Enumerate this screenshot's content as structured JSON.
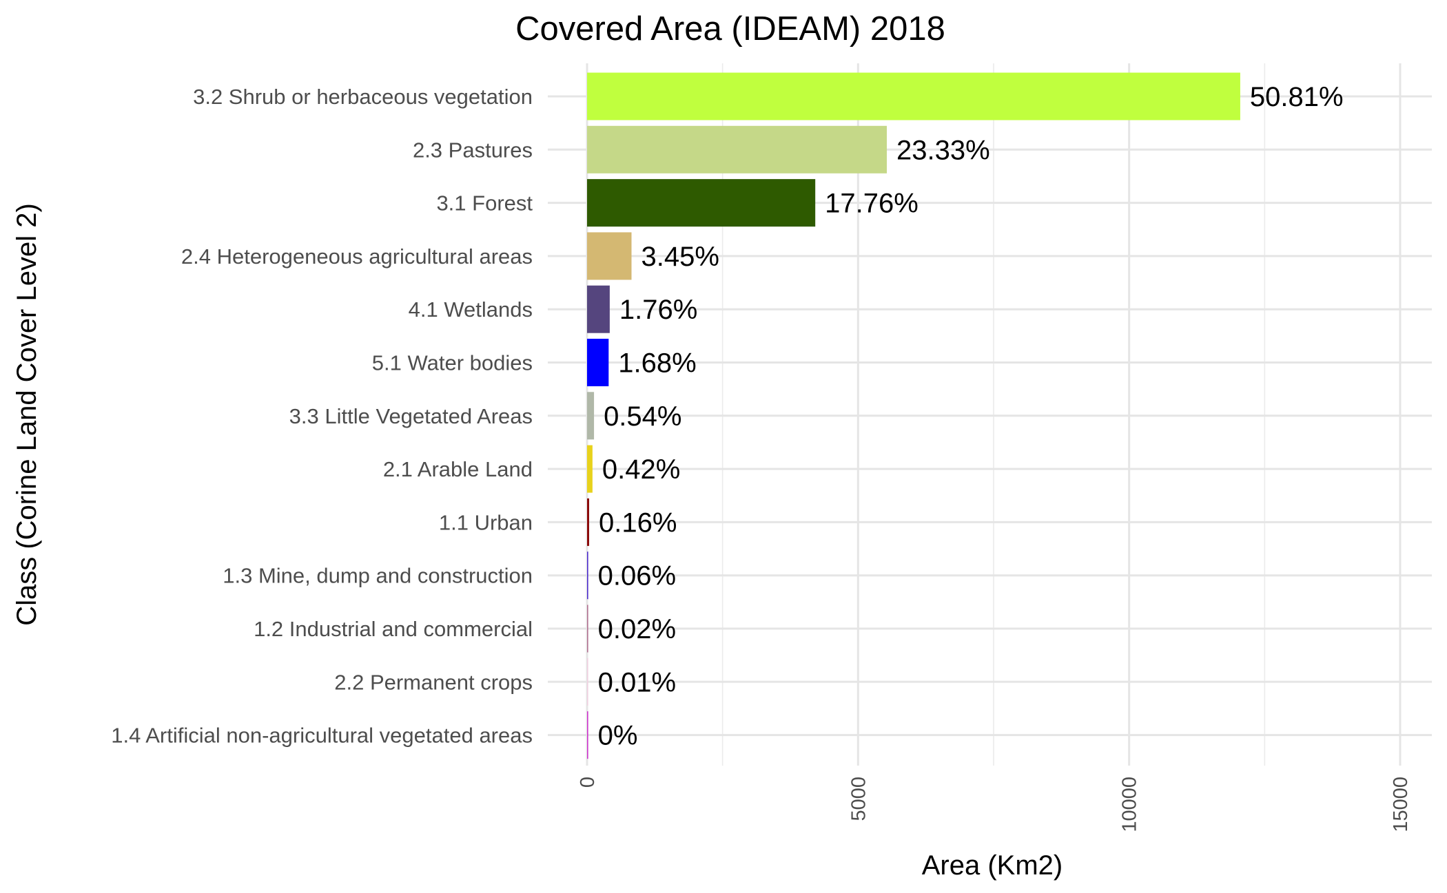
{
  "chart_data": {
    "type": "bar",
    "orientation": "horizontal",
    "title": "Covered Area (IDEAM) 2018",
    "xlabel": "Area (Km2)",
    "ylabel": "Class (Corine Land Cover Level 2)",
    "xlim": [
      0,
      15000
    ],
    "xticks": [
      "0",
      "5000",
      "10000",
      "15000"
    ],
    "grid": true,
    "legend": "none",
    "bars": [
      {
        "category": "3.2 Shrub or herbaceous vegetation",
        "value": 12050,
        "label": "50.81%",
        "color": "#c0ff3e"
      },
      {
        "category": "2.3 Pastures",
        "value": 5530,
        "label": "23.33%",
        "color": "#c5d888"
      },
      {
        "category": "3.1  Forest",
        "value": 4210,
        "label": "17.76%",
        "color": "#2e5a00"
      },
      {
        "category": "2.4 Heterogeneous agricultural areas",
        "value": 820,
        "label": "3.45%",
        "color": "#d4b872"
      },
      {
        "category": "4.1 Wetlands",
        "value": 418,
        "label": "1.76%",
        "color": "#55457e"
      },
      {
        "category": "5.1 Water bodies",
        "value": 398,
        "label": "1.68%",
        "color": "#0000ff"
      },
      {
        "category": "3.3 Little Vegetated Areas",
        "value": 128,
        "label": "0.54%",
        "color": "#b0b8a8"
      },
      {
        "category": "2.1 Arable Land",
        "value": 100,
        "label": "0.42%",
        "color": "#e8d21c"
      },
      {
        "category": "1.1 Urban",
        "value": 38,
        "label": "0.16%",
        "color": "#8b0a0a"
      },
      {
        "category": "1.3 Mine, dump and construction",
        "value": 14,
        "label": "0.06%",
        "color": "#4b2ccc"
      },
      {
        "category": "1.2 Industrial and commercial",
        "value": 5,
        "label": "0.02%",
        "color": "#b07090"
      },
      {
        "category": "2.2 Permanent crops",
        "value": 2,
        "label": "0.01%",
        "color": "#f0d0e0"
      },
      {
        "category": "1.4 Artificial non-agricultural vegetated areas",
        "value": 1,
        "label": "0%",
        "color": "#cc33cc"
      }
    ]
  }
}
